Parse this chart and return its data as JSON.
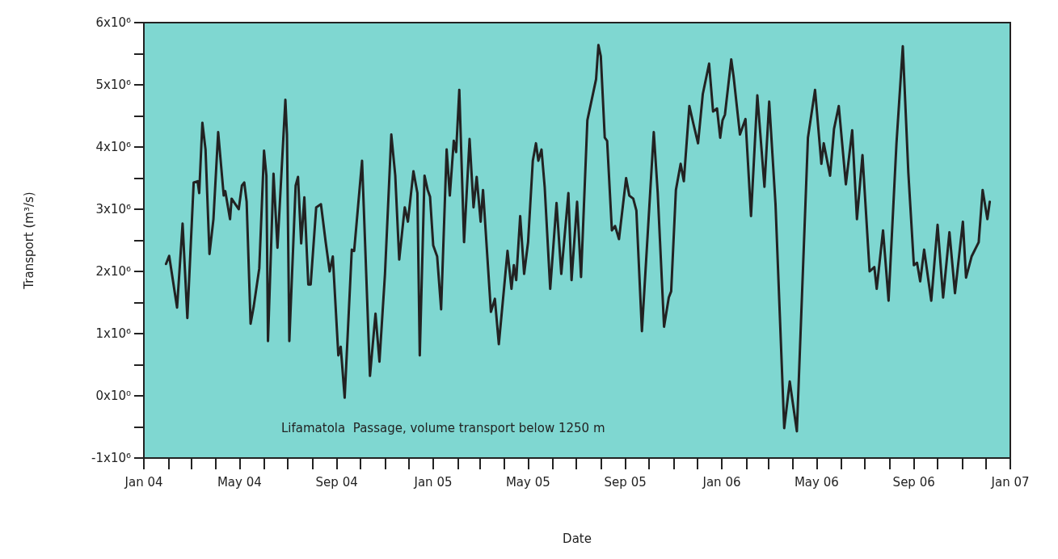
{
  "chart_data": {
    "type": "line",
    "xlabel": "Date",
    "ylabel": "Transport (m³/s)",
    "annotations": [
      "Lifamatola  Passage, volume transport below 1250 m"
    ],
    "xlim": [
      "2004-01",
      "2007-01"
    ],
    "xticks": [
      {
        "value": "2004-01",
        "label": "Jan 04"
      },
      {
        "value": "2004-02",
        "label": null
      },
      {
        "value": "2004-03",
        "label": null
      },
      {
        "value": "2004-04",
        "label": null
      },
      {
        "value": "2004-05",
        "label": "May 04"
      },
      {
        "value": "2004-06",
        "label": null
      },
      {
        "value": "2004-07",
        "label": null
      },
      {
        "value": "2004-08",
        "label": null
      },
      {
        "value": "2004-09",
        "label": "Sep 04"
      },
      {
        "value": "2004-10",
        "label": null
      },
      {
        "value": "2004-11",
        "label": null
      },
      {
        "value": "2004-12",
        "label": null
      },
      {
        "value": "2005-01",
        "label": "Jan 05"
      },
      {
        "value": "2005-02",
        "label": null
      },
      {
        "value": "2005-03",
        "label": null
      },
      {
        "value": "2005-04",
        "label": null
      },
      {
        "value": "2005-05",
        "label": "May 05"
      },
      {
        "value": "2005-06",
        "label": null
      },
      {
        "value": "2005-07",
        "label": null
      },
      {
        "value": "2005-08",
        "label": null
      },
      {
        "value": "2005-09",
        "label": "Sep 05"
      },
      {
        "value": "2005-10",
        "label": null
      },
      {
        "value": "2005-11",
        "label": null
      },
      {
        "value": "2005-12",
        "label": null
      },
      {
        "value": "2006-01",
        "label": "Jan 06"
      },
      {
        "value": "2006-02",
        "label": null
      },
      {
        "value": "2006-03",
        "label": null
      },
      {
        "value": "2006-04",
        "label": null
      },
      {
        "value": "2006-05",
        "label": "May 06"
      },
      {
        "value": "2006-06",
        "label": null
      },
      {
        "value": "2006-07",
        "label": null
      },
      {
        "value": "2006-08",
        "label": null
      },
      {
        "value": "2006-09",
        "label": "Sep 06"
      },
      {
        "value": "2006-10",
        "label": null
      },
      {
        "value": "2006-11",
        "label": null
      },
      {
        "value": "2006-12",
        "label": null
      },
      {
        "value": "2007-01",
        "label": "Jan 07"
      }
    ],
    "ylim": [
      -1000000,
      6000000
    ],
    "yticks": [
      {
        "value": -1000000,
        "label": "-1x10⁶"
      },
      {
        "value": -500000,
        "label": null
      },
      {
        "value": 0,
        "label": "0x10⁰"
      },
      {
        "value": 500000,
        "label": null
      },
      {
        "value": 1000000,
        "label": "1x10⁶"
      },
      {
        "value": 1500000,
        "label": null
      },
      {
        "value": 2000000,
        "label": "2x10⁶"
      },
      {
        "value": 2500000,
        "label": null
      },
      {
        "value": 3000000,
        "label": "3x10⁶"
      },
      {
        "value": 3500000,
        "label": null
      },
      {
        "value": 4000000,
        "label": "4x10⁶"
      },
      {
        "value": 4500000,
        "label": null
      },
      {
        "value": 5000000,
        "label": "5x10⁶"
      },
      {
        "value": 5500000,
        "label": null
      },
      {
        "value": 6000000,
        "label": "6x10⁶"
      }
    ],
    "grid": false,
    "marker": "none",
    "line_style": "solid",
    "series": [
      {
        "color": "#222222",
        "x": [
          "2004-01-29",
          "2004-02-02",
          "2004-02-12",
          "2004-02-19",
          "2004-02-25",
          "2004-03-04",
          "2004-03-09",
          "2004-03-11",
          "2004-03-15",
          "2004-03-19",
          "2004-03-24",
          "2004-03-29",
          "2004-04-04",
          "2004-04-11",
          "2004-04-13",
          "2004-04-19",
          "2004-04-21",
          "2004-04-30",
          "2004-05-04",
          "2004-05-07",
          "2004-05-10",
          "2004-05-15",
          "2004-05-19",
          "2004-05-26",
          "2004-06-01",
          "2004-06-04",
          "2004-06-06",
          "2004-06-13",
          "2004-06-18",
          "2004-06-28",
          "2004-06-30",
          "2004-07-03",
          "2004-07-11",
          "2004-07-14",
          "2004-07-18",
          "2004-07-22",
          "2004-07-27",
          "2004-07-30",
          "2004-08-06",
          "2004-08-12",
          "2004-08-18",
          "2004-08-23",
          "2004-08-27",
          "2004-09-03",
          "2004-09-06",
          "2004-09-11",
          "2004-09-20",
          "2004-09-23",
          "2004-10-03",
          "2004-10-13",
          "2004-10-20",
          "2004-10-25",
          "2004-11-01",
          "2004-11-09",
          "2004-11-14",
          "2004-11-19",
          "2004-11-26",
          "2004-11-30",
          "2004-12-07",
          "2004-12-12",
          "2004-12-15",
          "2004-12-21",
          "2004-12-25",
          "2004-12-28",
          "2005-01-01",
          "2005-01-06",
          "2005-01-11",
          "2005-01-18",
          "2005-01-22",
          "2005-01-27",
          "2005-01-30",
          "2005-02-03",
          "2005-02-09",
          "2005-02-16",
          "2005-02-21",
          "2005-02-25",
          "2005-03-02",
          "2005-03-05",
          "2005-03-15",
          "2005-03-20",
          "2005-03-25",
          "2005-04-05",
          "2005-04-10",
          "2005-04-13",
          "2005-04-16",
          "2005-04-21",
          "2005-04-26",
          "2005-05-01",
          "2005-05-07",
          "2005-05-11",
          "2005-05-14",
          "2005-05-18",
          "2005-05-22",
          "2005-05-29",
          "2005-06-06",
          "2005-06-12",
          "2005-06-21",
          "2005-06-25",
          "2005-07-02",
          "2005-07-07",
          "2005-07-15",
          "2005-07-26",
          "2005-07-29",
          "2005-08-01",
          "2005-08-06",
          "2005-08-09",
          "2005-08-15",
          "2005-08-19",
          "2005-08-24",
          "2005-09-02",
          "2005-09-06",
          "2005-09-11",
          "2005-09-15",
          "2005-09-22",
          "2005-10-07",
          "2005-10-12",
          "2005-10-20",
          "2005-10-26",
          "2005-10-29",
          "2005-11-04",
          "2005-11-10",
          "2005-11-14",
          "2005-11-21",
          "2005-11-26",
          "2005-12-02",
          "2005-12-08",
          "2005-12-16",
          "2005-12-21",
          "2005-12-26",
          "2005-12-30",
          "2006-01-02",
          "2006-01-05",
          "2006-01-13",
          "2006-01-16",
          "2006-01-24",
          "2006-01-31",
          "2006-02-07",
          "2006-02-15",
          "2006-02-24",
          "2006-03-02",
          "2006-03-10",
          "2006-03-21",
          "2006-03-28",
          "2006-04-06",
          "2006-04-20",
          "2006-04-29",
          "2006-05-07",
          "2006-05-10",
          "2006-05-18",
          "2006-05-23",
          "2006-05-29",
          "2006-06-07",
          "2006-06-15",
          "2006-06-21",
          "2006-06-28",
          "2006-07-07",
          "2006-07-13",
          "2006-07-16",
          "2006-07-24",
          "2006-07-31",
          "2006-08-10",
          "2006-08-18",
          "2006-08-25",
          "2006-09-01",
          "2006-09-05",
          "2006-09-09",
          "2006-09-14",
          "2006-09-23",
          "2006-10-01",
          "2006-10-08",
          "2006-10-16",
          "2006-10-23",
          "2006-11-02",
          "2006-11-06",
          "2006-11-13",
          "2006-11-22",
          "2006-11-27",
          "2006-12-03",
          "2006-12-06"
        ],
        "values": [
          2120000,
          2250000,
          1420000,
          2770000,
          1250000,
          3430000,
          3450000,
          3260000,
          4390000,
          3960000,
          2280000,
          2840000,
          4240000,
          3220000,
          3290000,
          2840000,
          3170000,
          3000000,
          3380000,
          3430000,
          3120000,
          1160000,
          1440000,
          2050000,
          3940000,
          3540000,
          880000,
          3570000,
          2380000,
          4760000,
          4200000,
          880000,
          3380000,
          3520000,
          2450000,
          3190000,
          1790000,
          1790000,
          3030000,
          3080000,
          2470000,
          2000000,
          2240000,
          650000,
          790000,
          -30000,
          2350000,
          2330000,
          3780000,
          320000,
          1320000,
          550000,
          1960000,
          4200000,
          3540000,
          2190000,
          3030000,
          2800000,
          3610000,
          3260000,
          650000,
          3540000,
          3310000,
          3200000,
          2420000,
          2240000,
          1390000,
          3960000,
          3220000,
          4100000,
          3920000,
          4920000,
          2470000,
          4130000,
          3030000,
          3520000,
          2800000,
          3310000,
          1350000,
          1560000,
          830000,
          2330000,
          1720000,
          2100000,
          1860000,
          2890000,
          1960000,
          2470000,
          3780000,
          4060000,
          3780000,
          3960000,
          3360000,
          1720000,
          3100000,
          1960000,
          3260000,
          1860000,
          3120000,
          1910000,
          4430000,
          5090000,
          5640000,
          5460000,
          4150000,
          4100000,
          2660000,
          2730000,
          2520000,
          3500000,
          3220000,
          3170000,
          2980000,
          1040000,
          4240000,
          3260000,
          1110000,
          1580000,
          1680000,
          3310000,
          3730000,
          3450000,
          4660000,
          4380000,
          4060000,
          4850000,
          5340000,
          4570000,
          4620000,
          4150000,
          4430000,
          4520000,
          5410000,
          5130000,
          4200000,
          4450000,
          2890000,
          4830000,
          3360000,
          4730000,
          3080000,
          -520000,
          230000,
          -570000,
          4150000,
          4920000,
          3730000,
          4060000,
          3540000,
          4290000,
          4660000,
          3400000,
          4270000,
          2840000,
          3870000,
          2000000,
          2070000,
          1720000,
          2660000,
          1530000,
          4060000,
          5620000,
          3590000,
          2100000,
          2140000,
          1840000,
          2350000,
          1530000,
          2750000,
          1580000,
          2630000,
          1650000,
          2800000,
          1900000,
          2240000,
          2470000,
          3310000,
          2840000,
          3120000
        ]
      }
    ]
  }
}
